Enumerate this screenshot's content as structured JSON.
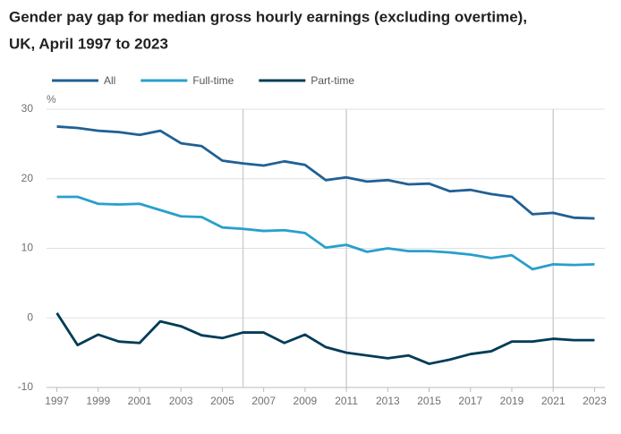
{
  "chart_data": {
    "type": "line",
    "title": [
      "Gender pay gap for median gross hourly earnings (excluding overtime),",
      "UK, April 1997 to 2023"
    ],
    "y_unit": "%",
    "x": [
      1997,
      1998,
      1999,
      2000,
      2001,
      2002,
      2003,
      2004,
      2005,
      2006,
      2007,
      2008,
      2009,
      2010,
      2011,
      2012,
      2013,
      2014,
      2015,
      2016,
      2017,
      2018,
      2019,
      2020,
      2021,
      2022,
      2023
    ],
    "series": [
      {
        "name": "All",
        "color": "#206095",
        "values": [
          27.5,
          27.3,
          26.9,
          26.7,
          26.3,
          26.9,
          25.1,
          24.7,
          22.6,
          22.2,
          21.9,
          22.5,
          22.0,
          19.8,
          20.2,
          19.6,
          19.8,
          19.2,
          19.3,
          18.2,
          18.4,
          17.8,
          17.4,
          14.9,
          15.1,
          14.4,
          14.3
        ]
      },
      {
        "name": "Full-time",
        "color": "#27a0cc",
        "values": [
          17.4,
          17.4,
          16.4,
          16.3,
          16.4,
          15.5,
          14.6,
          14.5,
          13.0,
          12.8,
          12.5,
          12.6,
          12.2,
          10.1,
          10.5,
          9.5,
          10.0,
          9.6,
          9.6,
          9.4,
          9.1,
          8.6,
          9.0,
          7.0,
          7.7,
          7.6,
          7.7
        ]
      },
      {
        "name": "Part-time",
        "color": "#003c57",
        "values": [
          0.7,
          -3.9,
          -2.4,
          -3.4,
          -3.6,
          -0.5,
          -1.2,
          -2.5,
          -2.9,
          -2.1,
          -2.1,
          -3.6,
          -2.4,
          -4.2,
          -5.0,
          -5.4,
          -5.8,
          -5.4,
          -6.6,
          -6.0,
          -5.2,
          -4.8,
          -3.4,
          -3.4,
          -3.0,
          -3.2,
          -3.2
        ]
      }
    ],
    "xlim": [
      1996.5,
      2023.5
    ],
    "xticks": [
      1997,
      1999,
      2001,
      2003,
      2005,
      2007,
      2009,
      2011,
      2013,
      2015,
      2017,
      2019,
      2021,
      2023
    ],
    "ylim": [
      -10,
      30
    ],
    "yticks": [
      -10,
      0,
      10,
      20,
      30
    ],
    "reference_lines": [
      2006,
      2011,
      2021
    ],
    "grid": true,
    "legend": "top-left"
  }
}
